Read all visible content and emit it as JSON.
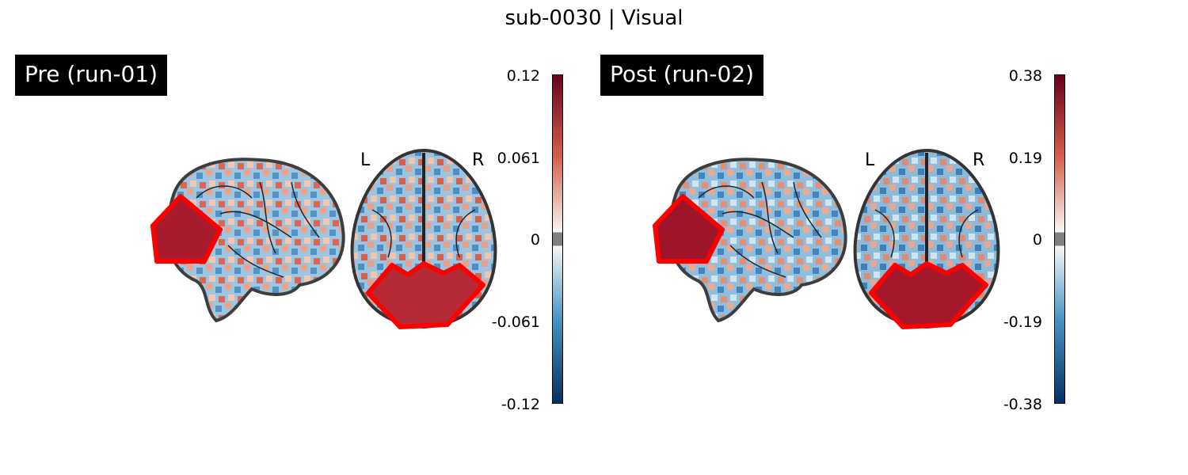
{
  "figure": {
    "title": "sub-0030 | Visual"
  },
  "panels": [
    {
      "label": "Pre (run-01)",
      "left_marker": "L",
      "right_marker": "R",
      "colorbar": {
        "ticks": [
          "0.12",
          "0.061",
          "0",
          "-0.061",
          "-0.12"
        ],
        "colormap": "RdBu_r"
      },
      "roi_color": "#ff0000"
    },
    {
      "label": "Post (run-02)",
      "left_marker": "L",
      "right_marker": "R",
      "colorbar": {
        "ticks": [
          "0.38",
          "0.19",
          "0",
          "-0.19",
          "-0.38"
        ],
        "colormap": "RdBu_r"
      },
      "roi_color": "#ff0000"
    }
  ],
  "colors": {
    "blue_dark": "#053061",
    "blue_mid": "#4393c3",
    "white": "#f7f7f7",
    "red_mid": "#d6604d",
    "red_dark": "#67001f"
  }
}
